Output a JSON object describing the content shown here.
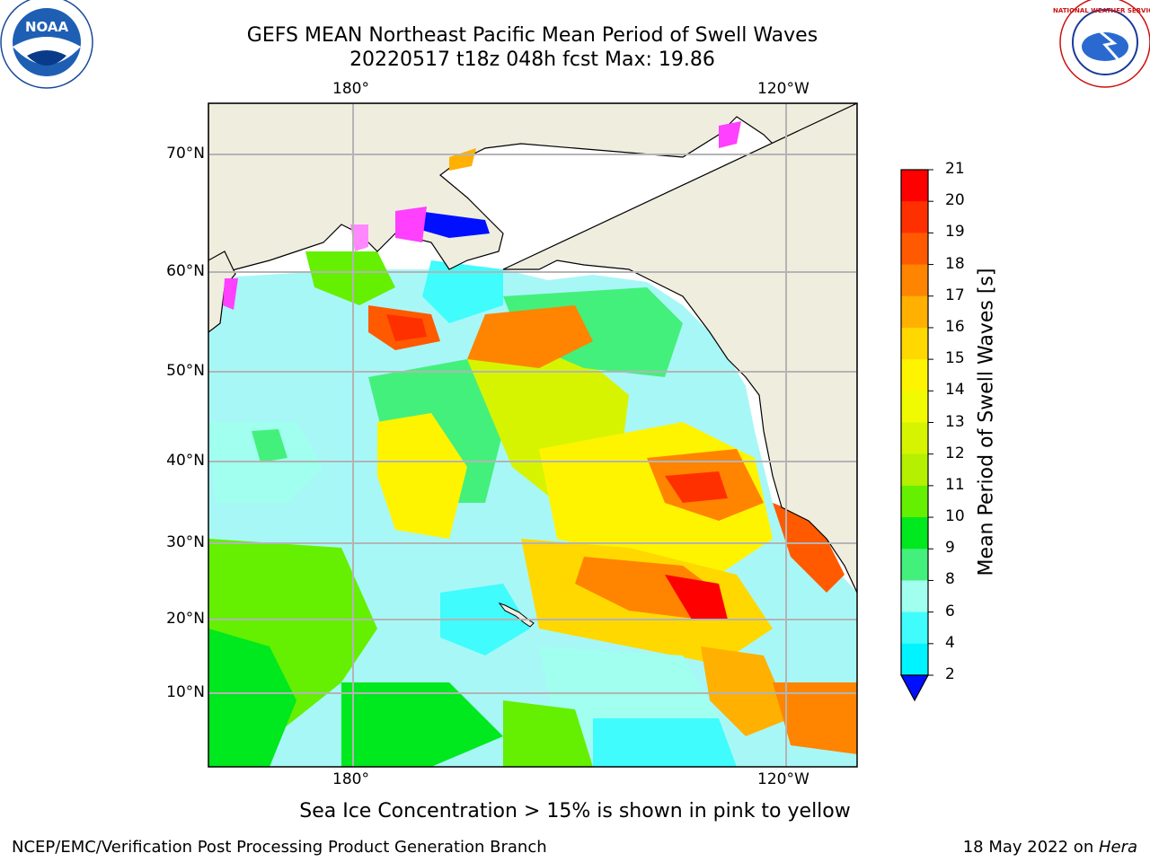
{
  "header": {
    "title_line1": "GEFS MEAN Northeast Pacific Mean Period of Swell Waves",
    "title_line2": "20220517 t18z 048h fcst   Max: 19.86"
  },
  "logos": {
    "left": {
      "icon": "noaa-logo",
      "text": "NOAA"
    },
    "right": {
      "icon": "nws-logo",
      "text": "NATIONAL WEATHER SERVICE"
    }
  },
  "map": {
    "lon_labels_top": [
      "180°",
      "120°W"
    ],
    "lon_labels_bottom": [
      "180°",
      "120°W"
    ],
    "lat_labels": [
      "70°N",
      "60°N",
      "50°N",
      "40°N",
      "30°N",
      "20°N",
      "10°N"
    ],
    "land_color": "#efedde",
    "ocean_base_color": "#a8f7f7"
  },
  "colorbar": {
    "title": "Mean Period of Swell Waves [s]",
    "levels": [
      "21",
      "20",
      "19",
      "18",
      "17",
      "16",
      "15",
      "14",
      "13",
      "12",
      "11",
      "10",
      "9",
      "8",
      "6",
      "4",
      "2"
    ],
    "colors": [
      "#ff0000",
      "#ff3000",
      "#ff5a00",
      "#ff8400",
      "#ffb000",
      "#ffd800",
      "#fff400",
      "#f0fa00",
      "#d6f400",
      "#b4f000",
      "#64f000",
      "#00e81e",
      "#44f07c",
      "#a0ffee",
      "#40fcfc",
      "#00f4ff",
      "#0088ff",
      "#0010ff"
    ]
  },
  "note": "Sea Ice Concentration > 15% is shown in pink to yellow",
  "footer": {
    "left": "NCEP/EMC/Verification Post Processing Product Generation Branch",
    "right_prefix": "18 May 2022 on ",
    "right_host": "Hera"
  }
}
